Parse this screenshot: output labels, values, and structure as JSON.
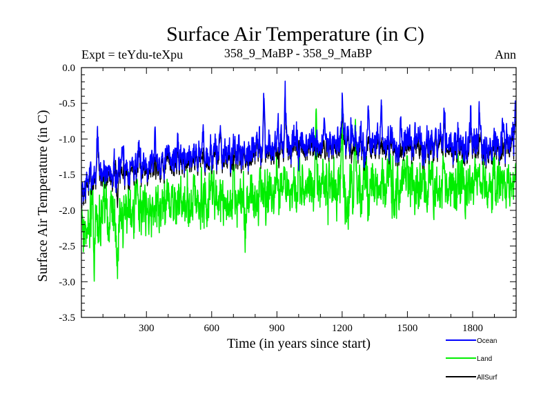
{
  "chart_data": {
    "type": "line",
    "title": "Surface Air Temperature (in C)",
    "subtitle_left": "Expt = teYdu-teXpu",
    "subtitle_center": "358_9_MaBP - 358_9_MaBP",
    "subtitle_right": "Ann",
    "xlabel": "Time (in years since start)",
    "ylabel": "Surface Air Temperature (in C)",
    "xlim": [
      1,
      2000
    ],
    "ylim": [
      -3.5,
      0.0
    ],
    "x_ticks": [
      300,
      600,
      900,
      1200,
      1500,
      1800
    ],
    "x_tick_labels": [
      "300",
      "600",
      "900",
      "1200",
      "1500",
      "1800"
    ],
    "y_ticks": [
      0.0,
      -0.5,
      -1.0,
      -1.5,
      -2.0,
      -2.5,
      -3.0,
      -3.5
    ],
    "y_tick_labels": [
      "0.0",
      "-0.5",
      "-1.0",
      "-1.5",
      "-2.0",
      "-2.5",
      "-3.0",
      "-3.5"
    ],
    "grid": false,
    "legend_position": "below-right",
    "n_points": 2000,
    "series": [
      {
        "name": "Ocean",
        "color": "#0000ff",
        "anchors": [
          [
            1,
            -1.78
          ],
          [
            30,
            -1.58
          ],
          [
            60,
            -1.48
          ],
          [
            100,
            -1.45
          ],
          [
            150,
            -1.42
          ],
          [
            200,
            -1.38
          ],
          [
            300,
            -1.32
          ],
          [
            400,
            -1.26
          ],
          [
            500,
            -1.22
          ],
          [
            600,
            -1.2
          ],
          [
            700,
            -1.22
          ],
          [
            800,
            -1.12
          ],
          [
            900,
            -1.1
          ],
          [
            1000,
            -1.08
          ],
          [
            1100,
            -1.08
          ],
          [
            1200,
            -1.04
          ],
          [
            1300,
            -1.08
          ],
          [
            1400,
            -1.1
          ],
          [
            1500,
            -1.08
          ],
          [
            1600,
            -1.1
          ],
          [
            1700,
            -1.08
          ],
          [
            1800,
            -1.07
          ],
          [
            1900,
            -1.12
          ],
          [
            2000,
            -1.02
          ]
        ],
        "noise": 0.12,
        "events": [
          [
            75,
            -0.78
          ],
          [
            160,
            -1.9
          ],
          [
            190,
            -1.0
          ],
          [
            340,
            -0.85
          ],
          [
            560,
            -0.88
          ],
          [
            640,
            -0.68
          ],
          [
            700,
            -1.0
          ],
          [
            840,
            -0.3
          ],
          [
            905,
            -0.55
          ],
          [
            938,
            -0.23
          ],
          [
            1000,
            -1.45
          ],
          [
            1120,
            -0.58
          ],
          [
            1200,
            -0.3
          ],
          [
            1245,
            -0.68
          ],
          [
            1320,
            -0.62
          ],
          [
            1380,
            -0.5
          ],
          [
            1470,
            -0.62
          ],
          [
            1555,
            -0.85
          ],
          [
            1670,
            -0.45
          ],
          [
            1790,
            -0.42
          ],
          [
            1830,
            -0.65
          ],
          [
            1940,
            -0.7
          ],
          [
            1996,
            -0.3
          ]
        ]
      },
      {
        "name": "Land",
        "color": "#00ee00",
        "anchors": [
          [
            1,
            -2.2
          ],
          [
            30,
            -2.12
          ],
          [
            60,
            -2.1
          ],
          [
            100,
            -2.08
          ],
          [
            150,
            -2.05
          ],
          [
            200,
            -2.0
          ],
          [
            300,
            -1.95
          ],
          [
            400,
            -1.9
          ],
          [
            500,
            -1.88
          ],
          [
            600,
            -1.82
          ],
          [
            700,
            -1.85
          ],
          [
            800,
            -1.75
          ],
          [
            900,
            -1.72
          ],
          [
            1000,
            -1.7
          ],
          [
            1100,
            -1.68
          ],
          [
            1200,
            -1.65
          ],
          [
            1300,
            -1.68
          ],
          [
            1400,
            -1.7
          ],
          [
            1500,
            -1.68
          ],
          [
            1600,
            -1.7
          ],
          [
            1700,
            -1.68
          ],
          [
            1800,
            -1.66
          ],
          [
            1900,
            -1.7
          ],
          [
            2000,
            -1.6
          ]
        ],
        "noise": 0.2,
        "events": [
          [
            60,
            -2.72
          ],
          [
            105,
            -1.65
          ],
          [
            165,
            -3.02
          ],
          [
            250,
            -1.55
          ],
          [
            400,
            -1.45
          ],
          [
            520,
            -1.55
          ],
          [
            700,
            -1.48
          ],
          [
            755,
            -2.58
          ],
          [
            900,
            -0.95
          ],
          [
            1000,
            -1.0
          ],
          [
            1080,
            -0.5
          ],
          [
            1200,
            -0.5
          ],
          [
            1225,
            -2.48
          ],
          [
            1260,
            -0.78
          ],
          [
            1320,
            -2.25
          ],
          [
            1420,
            -0.85
          ],
          [
            1500,
            -0.85
          ],
          [
            1600,
            -1.2
          ],
          [
            1750,
            -1.38
          ],
          [
            1900,
            -1.2
          ]
        ]
      },
      {
        "name": "AllSurf",
        "color": "#000000",
        "anchors": [
          [
            1,
            -1.85
          ],
          [
            30,
            -1.66
          ],
          [
            60,
            -1.56
          ],
          [
            100,
            -1.53
          ],
          [
            150,
            -1.5
          ],
          [
            200,
            -1.46
          ],
          [
            300,
            -1.4
          ],
          [
            400,
            -1.34
          ],
          [
            500,
            -1.3
          ],
          [
            600,
            -1.27
          ],
          [
            700,
            -1.3
          ],
          [
            800,
            -1.19
          ],
          [
            900,
            -1.17
          ],
          [
            1000,
            -1.15
          ],
          [
            1100,
            -1.15
          ],
          [
            1200,
            -1.11
          ],
          [
            1300,
            -1.15
          ],
          [
            1400,
            -1.17
          ],
          [
            1500,
            -1.15
          ],
          [
            1600,
            -1.17
          ],
          [
            1700,
            -1.15
          ],
          [
            1800,
            -1.14
          ],
          [
            1900,
            -1.19
          ],
          [
            2000,
            -1.09
          ]
        ],
        "noise": 0.11,
        "events": [
          [
            75,
            -0.85
          ],
          [
            165,
            -1.95
          ],
          [
            640,
            -0.75
          ],
          [
            840,
            -0.4
          ],
          [
            938,
            -0.35
          ],
          [
            1200,
            -0.4
          ],
          [
            1670,
            -0.55
          ],
          [
            1790,
            -0.5
          ],
          [
            1996,
            -0.4
          ]
        ]
      }
    ]
  }
}
